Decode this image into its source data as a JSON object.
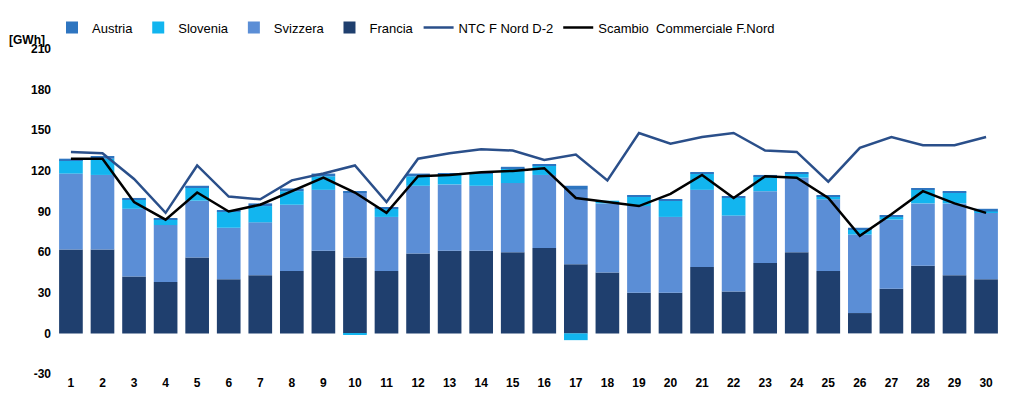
{
  "chart_data": {
    "type": "bar",
    "stacked": true,
    "ylabel": "[GWh]",
    "categories": [
      "1",
      "2",
      "3",
      "4",
      "5",
      "6",
      "7",
      "8",
      "9",
      "10",
      "11",
      "12",
      "13",
      "14",
      "15",
      "16",
      "17",
      "18",
      "19",
      "20",
      "21",
      "22",
      "23",
      "24",
      "25",
      "26",
      "27",
      "28",
      "29",
      "30"
    ],
    "ylim": [
      -30,
      210
    ],
    "yticks": [
      -30,
      0,
      30,
      60,
      90,
      120,
      150,
      180,
      210
    ],
    "grid": false,
    "legend": "top",
    "series": [
      {
        "name": "Austria",
        "type": "bar",
        "color": "#2e75c0",
        "values": [
          1,
          2,
          1,
          1,
          1,
          1,
          2,
          2,
          2,
          1,
          1,
          2,
          1,
          1,
          1,
          1,
          3,
          0,
          1,
          1,
          1,
          1,
          1,
          1,
          1,
          1,
          1,
          1,
          1,
          2
        ]
      },
      {
        "name": "Slovenia",
        "type": "bar",
        "color": "#12b5ef",
        "values": [
          10,
          12,
          7,
          4,
          10,
          12,
          12,
          10,
          10,
          -1,
          6,
          7,
          7,
          9,
          11,
          7,
          -5,
          2,
          7,
          12,
          12,
          13,
          11,
          3,
          2,
          4,
          2,
          10,
          8,
          1
        ]
      },
      {
        "name": "Svizzera",
        "type": "bar",
        "color": "#5b8ed6",
        "values": [
          56,
          55,
          50,
          42,
          42,
          38,
          39,
          49,
          45,
          48,
          40,
          50,
          49,
          48,
          51,
          54,
          55,
          51,
          64,
          56,
          57,
          56,
          53,
          55,
          53,
          58,
          51,
          46,
          53,
          49
        ]
      },
      {
        "name": "Francia",
        "type": "bar",
        "color": "#1f3f6e",
        "values": [
          62,
          62,
          42,
          38,
          56,
          40,
          43,
          46,
          61,
          56,
          46,
          59,
          61,
          61,
          60,
          63,
          51,
          45,
          30,
          30,
          49,
          31,
          52,
          60,
          46,
          15,
          33,
          50,
          43,
          40
        ]
      },
      {
        "name": "NTC F Nord D-2",
        "type": "line",
        "color": "#2a4f8a",
        "values": [
          134,
          133,
          114,
          89,
          124,
          101,
          99,
          113,
          118,
          124,
          97,
          129,
          133,
          136,
          135,
          128,
          132,
          113,
          148,
          140,
          145,
          148,
          135,
          134,
          112,
          137,
          145,
          139,
          139,
          145
        ]
      },
      {
        "name": "Scambio  Commerciale F.Nord",
        "type": "line",
        "color": "#000000",
        "values": [
          129,
          129,
          97,
          84,
          104,
          90,
          95,
          105,
          115,
          104,
          89,
          116,
          117,
          119,
          120,
          122,
          100,
          97,
          94,
          103,
          117,
          100,
          116,
          115,
          100,
          72,
          88,
          105,
          96,
          89
        ]
      }
    ]
  }
}
